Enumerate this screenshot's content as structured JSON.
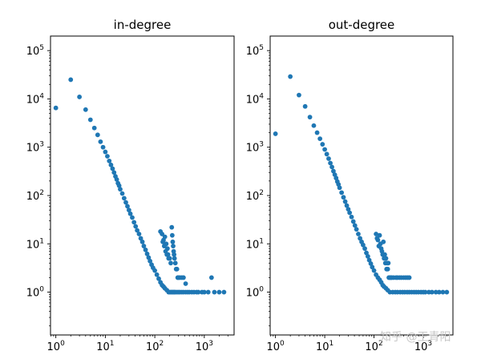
{
  "watermark": "知乎 @王青阳",
  "chart_data": [
    {
      "type": "scatter",
      "title": "in-degree",
      "xlabel": "",
      "ylabel": "",
      "xscale": "log",
      "yscale": "log",
      "xlim": [
        0.78,
        4000
      ],
      "ylim": [
        0.13,
        200000
      ],
      "xticks": [
        1,
        10,
        100,
        1000
      ],
      "yticks": [
        1,
        10,
        100,
        1000,
        10000,
        100000
      ],
      "color": "#1f77b4",
      "grid": false,
      "points": [
        [
          1,
          6500
        ],
        [
          2,
          25000
        ],
        [
          3,
          11000
        ],
        [
          4,
          6000
        ],
        [
          5,
          3700
        ],
        [
          6,
          2500
        ],
        [
          7,
          1800
        ],
        [
          8,
          1300
        ],
        [
          9,
          1000
        ],
        [
          10,
          800
        ],
        [
          11,
          650
        ],
        [
          12,
          520
        ],
        [
          13,
          430
        ],
        [
          14,
          360
        ],
        [
          15,
          300
        ],
        [
          16,
          250
        ],
        [
          17,
          215
        ],
        [
          18,
          180
        ],
        [
          19,
          160
        ],
        [
          20,
          135
        ],
        [
          22,
          110
        ],
        [
          24,
          88
        ],
        [
          26,
          72
        ],
        [
          28,
          60
        ],
        [
          30,
          50
        ],
        [
          32,
          42
        ],
        [
          35,
          35
        ],
        [
          38,
          28
        ],
        [
          41,
          23
        ],
        [
          44,
          19
        ],
        [
          48,
          16
        ],
        [
          52,
          13
        ],
        [
          56,
          11
        ],
        [
          60,
          9
        ],
        [
          65,
          7.5
        ],
        [
          70,
          6.2
        ],
        [
          75,
          5.2
        ],
        [
          80,
          4.4
        ],
        [
          86,
          3.7
        ],
        [
          92,
          3.2
        ],
        [
          100,
          2.8
        ],
        [
          110,
          2.3
        ],
        [
          120,
          1.9
        ],
        [
          130,
          1.6
        ],
        [
          140,
          1.4
        ],
        [
          150,
          1.3
        ],
        [
          160,
          1.2
        ],
        [
          175,
          1.1
        ],
        [
          190,
          1.0
        ],
        [
          200,
          1.0
        ],
        [
          210,
          1.0
        ],
        [
          220,
          1.0
        ],
        [
          230,
          1.0
        ],
        [
          240,
          1.0
        ],
        [
          250,
          1.0
        ],
        [
          260,
          1.0
        ],
        [
          280,
          1.0
        ],
        [
          300,
          1.0
        ],
        [
          320,
          1.0
        ],
        [
          350,
          1.0
        ],
        [
          380,
          1.0
        ],
        [
          420,
          1.0
        ],
        [
          460,
          1.0
        ],
        [
          500,
          1.0
        ],
        [
          560,
          1.0
        ],
        [
          620,
          1.0
        ],
        [
          700,
          1.0
        ],
        [
          760,
          1.0
        ],
        [
          900,
          1.0
        ],
        [
          1000,
          1.0
        ],
        [
          1200,
          1.0
        ],
        [
          1400,
          2.0
        ],
        [
          1600,
          1.0
        ],
        [
          2000,
          1.0
        ],
        [
          2500,
          1.0
        ],
        [
          150,
          12
        ],
        [
          160,
          14
        ],
        [
          170,
          10
        ],
        [
          180,
          8
        ],
        [
          185,
          6
        ],
        [
          200,
          5
        ],
        [
          210,
          4
        ],
        [
          220,
          22
        ],
        [
          225,
          15
        ],
        [
          230,
          11
        ],
        [
          235,
          9
        ],
        [
          240,
          7
        ],
        [
          245,
          6
        ],
        [
          250,
          5
        ],
        [
          260,
          4
        ],
        [
          270,
          3
        ],
        [
          280,
          3
        ],
        [
          290,
          2
        ],
        [
          300,
          2
        ],
        [
          320,
          2
        ],
        [
          350,
          2
        ],
        [
          380,
          2
        ],
        [
          420,
          1.5
        ],
        [
          130,
          18
        ],
        [
          140,
          16
        ],
        [
          145,
          11
        ],
        [
          155,
          9
        ],
        [
          165,
          7
        ],
        [
          175,
          6
        ],
        [
          190,
          5
        ]
      ]
    },
    {
      "type": "scatter",
      "title": "out-degree",
      "xlabel": "",
      "ylabel": "",
      "xscale": "log",
      "yscale": "log",
      "xlim": [
        0.78,
        4000
      ],
      "ylim": [
        0.13,
        200000
      ],
      "xticks": [
        1,
        10,
        100,
        1000
      ],
      "yticks": [
        1,
        10,
        100,
        1000,
        10000,
        100000
      ],
      "color": "#1f77b4",
      "grid": false,
      "points": [
        [
          1,
          1900
        ],
        [
          2,
          29000
        ],
        [
          3,
          12000
        ],
        [
          4,
          7000
        ],
        [
          5,
          4200
        ],
        [
          6,
          2800
        ],
        [
          7,
          2000
        ],
        [
          8,
          1500
        ],
        [
          9,
          1150
        ],
        [
          10,
          900
        ],
        [
          11,
          720
        ],
        [
          12,
          580
        ],
        [
          13,
          470
        ],
        [
          14,
          390
        ],
        [
          15,
          320
        ],
        [
          16,
          270
        ],
        [
          17,
          230
        ],
        [
          18,
          195
        ],
        [
          19,
          170
        ],
        [
          20,
          145
        ],
        [
          22,
          115
        ],
        [
          24,
          92
        ],
        [
          26,
          75
        ],
        [
          28,
          62
        ],
        [
          30,
          52
        ],
        [
          32,
          44
        ],
        [
          35,
          36
        ],
        [
          38,
          29
        ],
        [
          41,
          24
        ],
        [
          44,
          20
        ],
        [
          48,
          16
        ],
        [
          52,
          13
        ],
        [
          56,
          11
        ],
        [
          60,
          9.5
        ],
        [
          65,
          8
        ],
        [
          70,
          6.5
        ],
        [
          75,
          5.5
        ],
        [
          80,
          4.6
        ],
        [
          86,
          3.9
        ],
        [
          92,
          3.3
        ],
        [
          100,
          2.8
        ],
        [
          110,
          2.3
        ],
        [
          120,
          2.0
        ],
        [
          130,
          1.8
        ],
        [
          140,
          1.6
        ],
        [
          150,
          1.4
        ],
        [
          160,
          1.3
        ],
        [
          175,
          1.2
        ],
        [
          190,
          1.1
        ],
        [
          210,
          1.0
        ],
        [
          240,
          1.0
        ],
        [
          270,
          1.0
        ],
        [
          300,
          1.0
        ],
        [
          340,
          1.0
        ],
        [
          380,
          1.0
        ],
        [
          420,
          1.0
        ],
        [
          470,
          1.0
        ],
        [
          520,
          1.0
        ],
        [
          580,
          1.0
        ],
        [
          650,
          1.0
        ],
        [
          720,
          1.0
        ],
        [
          800,
          1.0
        ],
        [
          900,
          1.0
        ],
        [
          1000,
          1.0
        ],
        [
          1100,
          1.0
        ],
        [
          1300,
          1.0
        ],
        [
          1500,
          1.0
        ],
        [
          1800,
          1.0
        ],
        [
          2100,
          1.0
        ],
        [
          2500,
          1.0
        ],
        [
          3000,
          1.0
        ],
        [
          120,
          12
        ],
        [
          130,
          15
        ],
        [
          135,
          10
        ],
        [
          140,
          8
        ],
        [
          145,
          7
        ],
        [
          150,
          6
        ],
        [
          160,
          5
        ],
        [
          170,
          4
        ],
        [
          180,
          3
        ],
        [
          190,
          3
        ],
        [
          200,
          2
        ],
        [
          210,
          2
        ],
        [
          220,
          2
        ],
        [
          230,
          2
        ],
        [
          250,
          2
        ],
        [
          280,
          2
        ],
        [
          300,
          2
        ],
        [
          330,
          2
        ],
        [
          360,
          2
        ],
        [
          400,
          2
        ],
        [
          440,
          2
        ],
        [
          480,
          2
        ],
        [
          520,
          2
        ],
        [
          110,
          16
        ],
        [
          115,
          13
        ],
        [
          125,
          9
        ],
        [
          155,
          11
        ],
        [
          165,
          6
        ],
        [
          175,
          5
        ],
        [
          185,
          4
        ],
        [
          195,
          4
        ]
      ]
    }
  ]
}
